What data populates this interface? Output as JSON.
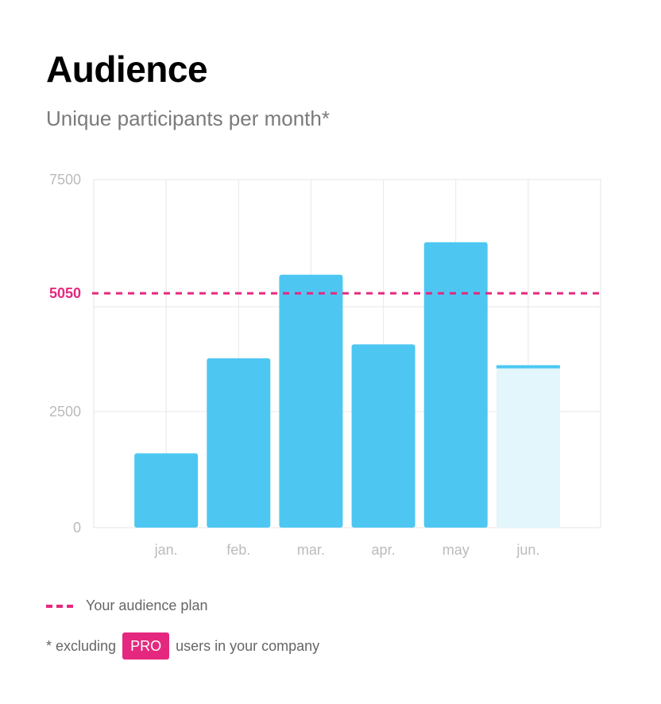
{
  "header": {
    "title": "Audience",
    "subtitle": "Unique participants per month*"
  },
  "legend": {
    "label": "Your audience plan"
  },
  "footnote": {
    "prefix": "* excluding",
    "badge": "PRO",
    "suffix": "users in your company"
  },
  "colors": {
    "bar": "#4dc7f2",
    "bar_current": "#e2f6fc",
    "plan_line": "#e5287f",
    "grid": "#e8e8e8",
    "tick": "#bbbbbb"
  },
  "chart_data": {
    "type": "bar",
    "title": "Audience",
    "subtitle": "Unique participants per month*",
    "categories": [
      "jan.",
      "feb.",
      "mar.",
      "apr.",
      "may",
      "jun."
    ],
    "values": [
      1600,
      3650,
      5450,
      3950,
      6150,
      3500
    ],
    "current_category": "jun.",
    "ylim": [
      0,
      7500
    ],
    "yticks": [
      0,
      2500,
      5050,
      7500
    ],
    "plan_value": 5050,
    "plan_label": "5050",
    "grid": true,
    "legend_position": "bottom-left"
  }
}
